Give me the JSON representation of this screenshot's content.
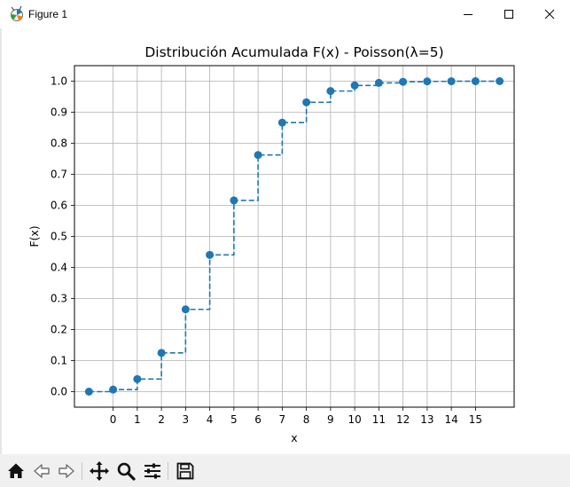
{
  "window": {
    "title": "Figure 1"
  },
  "chart_data": {
    "type": "step",
    "title": "Distribución Acumulada F(x) - Poisson(λ=5)",
    "xlabel": "x",
    "ylabel": "F(x)",
    "x": [
      -1,
      0,
      1,
      2,
      3,
      4,
      5,
      6,
      7,
      8,
      9,
      10,
      11,
      12,
      13,
      14,
      15,
      16
    ],
    "y": [
      0.0,
      0.0067,
      0.0404,
      0.1247,
      0.265,
      0.4405,
      0.616,
      0.7622,
      0.8666,
      0.9319,
      0.9682,
      0.9863,
      0.9945,
      0.998,
      0.9993,
      0.9998,
      0.9999,
      1.0
    ],
    "xticks": [
      "0",
      "1",
      "2",
      "3",
      "4",
      "5",
      "6",
      "7",
      "8",
      "9",
      "10",
      "11",
      "12",
      "13",
      "14",
      "15"
    ],
    "yticks": [
      "0.0",
      "0.1",
      "0.2",
      "0.3",
      "0.4",
      "0.5",
      "0.6",
      "0.7",
      "0.8",
      "0.9",
      "1.0"
    ],
    "xlim": [
      -1.6,
      16.6
    ],
    "ylim": [
      -0.05,
      1.05
    ],
    "grid": true,
    "line_style": "dashed",
    "color": "#1f77b4"
  },
  "toolbar": {
    "buttons": [
      "home-icon",
      "back-arrow-icon",
      "forward-arrow-icon",
      "pan-icon",
      "zoom-icon",
      "configure-subplots-icon",
      "save-icon"
    ]
  }
}
